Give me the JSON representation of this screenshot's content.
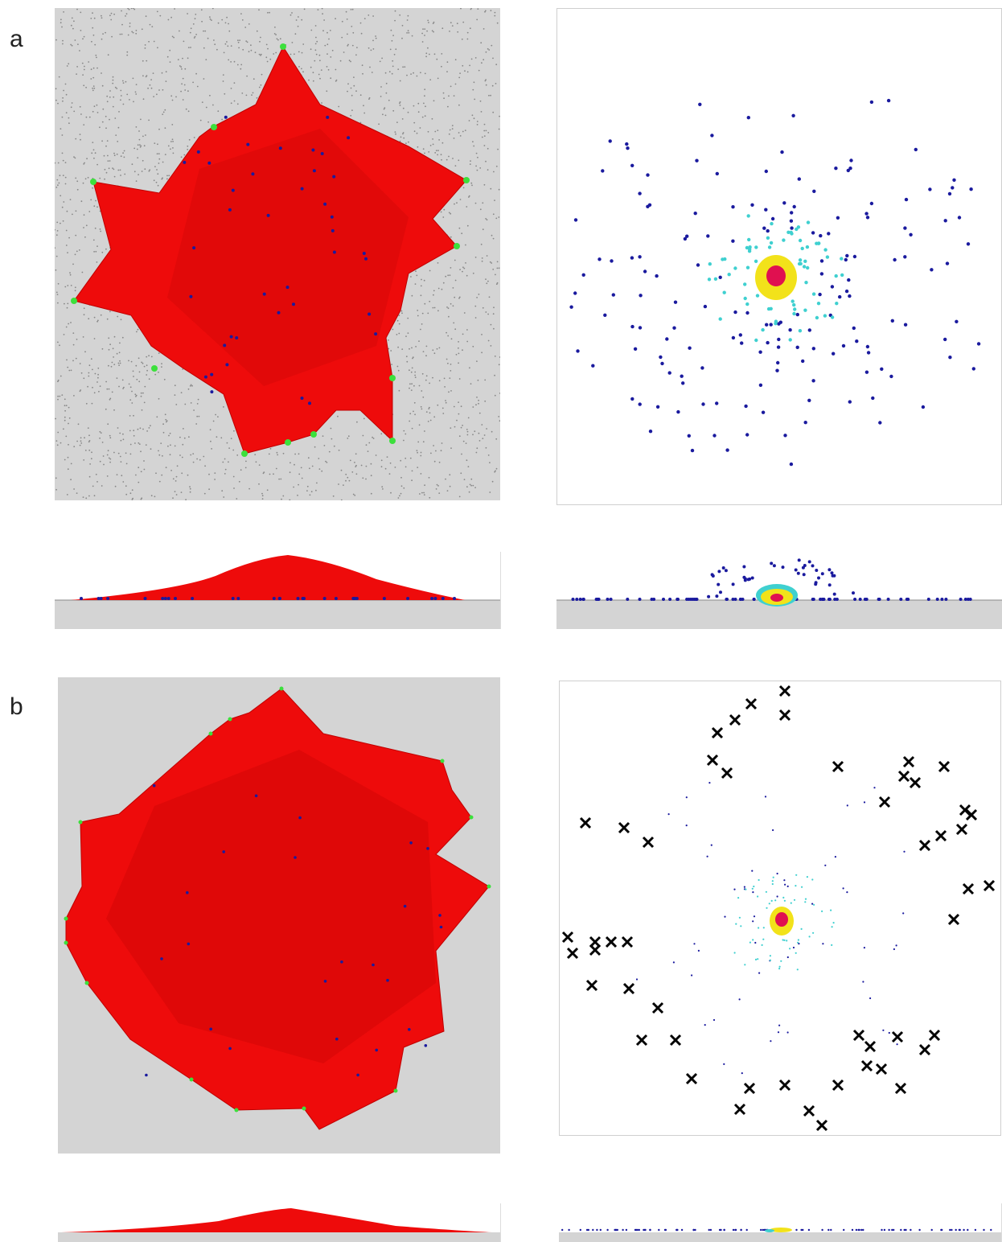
{
  "panels": {
    "a": {
      "label": "a"
    },
    "b": {
      "label": "b"
    }
  },
  "colors": {
    "network_edges": "#ee0b0b",
    "node_blue": "#1a1a9e",
    "node_cyan": "#3fd0d0",
    "node_yellow": "#f2e21a",
    "node_red": "#e01050",
    "anchor_green": "#3ce03c",
    "substrate": "#d4d4d4",
    "removed_marker": "#000000"
  }
}
